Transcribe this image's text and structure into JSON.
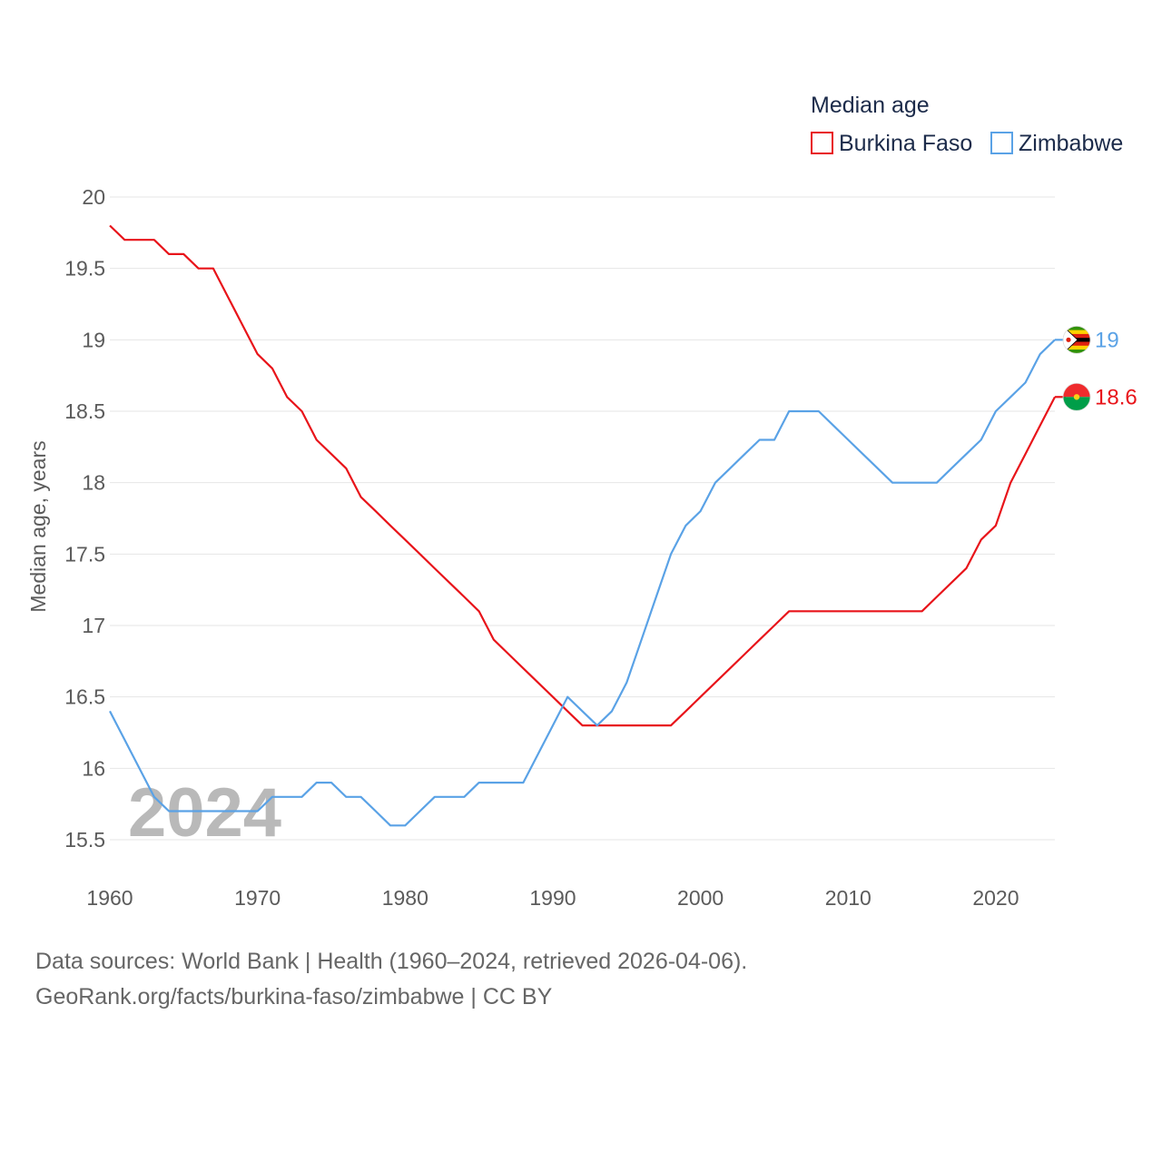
{
  "chart_data": {
    "type": "line",
    "title": "Median age",
    "xlabel": "",
    "ylabel": "Median age, years",
    "xlim": [
      1960,
      2024
    ],
    "ylim": [
      15.5,
      20
    ],
    "x_ticks": [
      "1960",
      "1970",
      "1980",
      "1990",
      "2000",
      "2010",
      "2020"
    ],
    "y_ticks": [
      "15.5",
      "16",
      "16.5",
      "17",
      "17.5",
      "18",
      "18.5",
      "19",
      "19.5",
      "20"
    ],
    "grid": true,
    "legend_position": "top-right",
    "watermark_year": "2024",
    "x": [
      1960,
      1961,
      1962,
      1963,
      1964,
      1965,
      1966,
      1967,
      1968,
      1969,
      1970,
      1971,
      1972,
      1973,
      1974,
      1975,
      1976,
      1977,
      1978,
      1979,
      1980,
      1981,
      1982,
      1983,
      1984,
      1985,
      1986,
      1987,
      1988,
      1989,
      1990,
      1991,
      1992,
      1993,
      1994,
      1995,
      1996,
      1997,
      1998,
      1999,
      2000,
      2001,
      2002,
      2003,
      2004,
      2005,
      2006,
      2007,
      2008,
      2009,
      2010,
      2011,
      2012,
      2013,
      2014,
      2015,
      2016,
      2017,
      2018,
      2019,
      2020,
      2021,
      2022,
      2023,
      2024
    ],
    "series": [
      {
        "name": "Burkina Faso",
        "color": "#e8141a",
        "end_label": "18.6",
        "flag": "burkina-faso-flag",
        "values": [
          19.8,
          19.7,
          19.7,
          19.7,
          19.6,
          19.6,
          19.5,
          19.5,
          19.3,
          19.1,
          18.9,
          18.8,
          18.6,
          18.5,
          18.3,
          18.2,
          18.1,
          17.9,
          17.8,
          17.7,
          17.6,
          17.5,
          17.4,
          17.3,
          17.2,
          17.1,
          16.9,
          16.8,
          16.7,
          16.6,
          16.5,
          16.4,
          16.3,
          16.3,
          16.3,
          16.3,
          16.3,
          16.3,
          16.3,
          16.4,
          16.5,
          16.6,
          16.7,
          16.8,
          16.9,
          17.0,
          17.1,
          17.1,
          17.1,
          17.1,
          17.1,
          17.1,
          17.1,
          17.1,
          17.1,
          17.1,
          17.2,
          17.3,
          17.4,
          17.6,
          17.7,
          18.0,
          18.2,
          18.4,
          18.6
        ]
      },
      {
        "name": "Zimbabwe",
        "color": "#5aa2e6",
        "end_label": "19",
        "flag": "zimbabwe-flag",
        "values": [
          16.4,
          16.2,
          16.0,
          15.8,
          15.7,
          15.7,
          15.7,
          15.7,
          15.7,
          15.7,
          15.7,
          15.8,
          15.8,
          15.8,
          15.9,
          15.9,
          15.8,
          15.8,
          15.7,
          15.6,
          15.6,
          15.7,
          15.8,
          15.8,
          15.8,
          15.9,
          15.9,
          15.9,
          15.9,
          16.1,
          16.3,
          16.5,
          16.4,
          16.3,
          16.4,
          16.6,
          16.9,
          17.2,
          17.5,
          17.7,
          17.8,
          18.0,
          18.1,
          18.2,
          18.3,
          18.3,
          18.5,
          18.5,
          18.5,
          18.4,
          18.3,
          18.2,
          18.1,
          18.0,
          18.0,
          18.0,
          18.0,
          18.1,
          18.2,
          18.3,
          18.5,
          18.6,
          18.7,
          18.9,
          19.0
        ]
      }
    ]
  },
  "footer": {
    "sources": "Data sources: World Bank | Health (1960–2024, retrieved 2026-04-06).",
    "credit": "GeoRank.org/facts/burkina-faso/zimbabwe | CC BY"
  }
}
